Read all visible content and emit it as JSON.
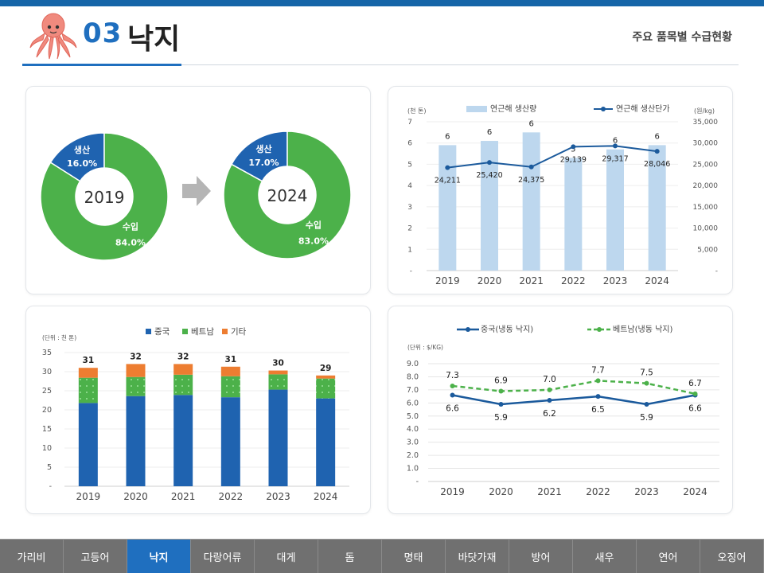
{
  "header": {
    "number": "03",
    "title": "낙지",
    "subtitle": "주요 품목별 수급현황",
    "accent": "#1f6fbf"
  },
  "donuts": [
    {
      "year": "2019",
      "segments": [
        {
          "label": "생산",
          "pct": "16.0%",
          "value": 16.0,
          "color": "#1f63b0"
        },
        {
          "label": "수입",
          "pct": "84.0%",
          "value": 84.0,
          "color": "#4cb14a"
        }
      ]
    },
    {
      "year": "2024",
      "segments": [
        {
          "label": "생산",
          "pct": "17.0%",
          "value": 17.0,
          "color": "#1f63b0"
        },
        {
          "label": "수입",
          "pct": "83.0%",
          "value": 83.0,
          "color": "#4cb14a"
        }
      ]
    }
  ],
  "chart_data": [
    {
      "type": "bar",
      "title": "",
      "y_unit_left": "(천 톤)",
      "y_unit_right": "(원/kg)",
      "categories": [
        "2019",
        "2020",
        "2021",
        "2022",
        "2023",
        "2024"
      ],
      "ylim_left": [
        0,
        7
      ],
      "yticks_left": [
        "-",
        "1",
        "2",
        "3",
        "4",
        "5",
        "6",
        "7"
      ],
      "ylim_right": [
        0,
        35000
      ],
      "yticks_right": [
        "-",
        "5,000",
        "10,000",
        "15,000",
        "20,000",
        "25,000",
        "30,000",
        "35,000"
      ],
      "series": [
        {
          "name": "연근해 생산량",
          "kind": "bar",
          "axis": "left",
          "color": "#bdd7ee",
          "values": [
            5.9,
            6.1,
            6.5,
            5.3,
            5.7,
            5.9
          ],
          "labels": [
            "6",
            "6",
            "6",
            "5",
            "6",
            "6"
          ]
        },
        {
          "name": "연근해 생산단가",
          "kind": "line",
          "axis": "right",
          "color": "#1b5a9c",
          "values": [
            24211,
            25420,
            24375,
            29139,
            29317,
            28046
          ],
          "labels": [
            "24,211",
            "25,420",
            "24,375",
            "29,139",
            "29,317",
            "28,046"
          ]
        }
      ],
      "legend": "top"
    },
    {
      "type": "bar",
      "stacked": true,
      "y_unit": "(단위 : 천 톤)",
      "categories": [
        "2019",
        "2020",
        "2021",
        "2022",
        "2023",
        "2024"
      ],
      "ylim": [
        0,
        35
      ],
      "yticks": [
        "-",
        "5",
        "10",
        "15",
        "20",
        "25",
        "30",
        "35"
      ],
      "series": [
        {
          "name": "중국",
          "color": "#1f63b0",
          "values": [
            21.8,
            23.6,
            23.9,
            23.3,
            25.3,
            23.0
          ]
        },
        {
          "name": "베트남",
          "color": "#4cb14a",
          "values": [
            6.6,
            5.0,
            5.3,
            5.5,
            4.0,
            5.2
          ]
        },
        {
          "name": "기타",
          "color": "#ed7d31",
          "values": [
            2.6,
            3.4,
            2.8,
            2.5,
            1.0,
            0.8
          ]
        }
      ],
      "totals": [
        "31",
        "32",
        "32",
        "31",
        "30",
        "29"
      ],
      "legend": "top"
    },
    {
      "type": "line",
      "y_unit": "(단위 : $/KG)",
      "categories": [
        "2019",
        "2020",
        "2021",
        "2022",
        "2023",
        "2024"
      ],
      "ylim": [
        0,
        9
      ],
      "yticks": [
        "-",
        "1.0",
        "2.0",
        "3.0",
        "4.0",
        "5.0",
        "6.0",
        "7.0",
        "8.0",
        "9.0"
      ],
      "series": [
        {
          "name": "중국(냉동 낙지)",
          "color": "#1b5a9c",
          "dashed": false,
          "values": [
            6.6,
            5.9,
            6.2,
            6.5,
            5.9,
            6.6
          ],
          "labels": [
            "6.6",
            "5.9",
            "6.2",
            "6.5",
            "5.9",
            "6.6"
          ]
        },
        {
          "name": "베트남(냉동 낙지)",
          "color": "#4cb14a",
          "dashed": true,
          "values": [
            7.3,
            6.9,
            7.0,
            7.7,
            7.5,
            6.7
          ],
          "labels": [
            "7.3",
            "6.9",
            "7.0",
            "7.7",
            "7.5",
            "6.7"
          ]
        }
      ],
      "legend": "top"
    }
  ],
  "nav": {
    "items": [
      "가리비",
      "고등어",
      "낙지",
      "다랑어류",
      "대게",
      "돔",
      "명태",
      "바닷가재",
      "방어",
      "새우",
      "연어",
      "오징어"
    ],
    "active": "낙지"
  }
}
